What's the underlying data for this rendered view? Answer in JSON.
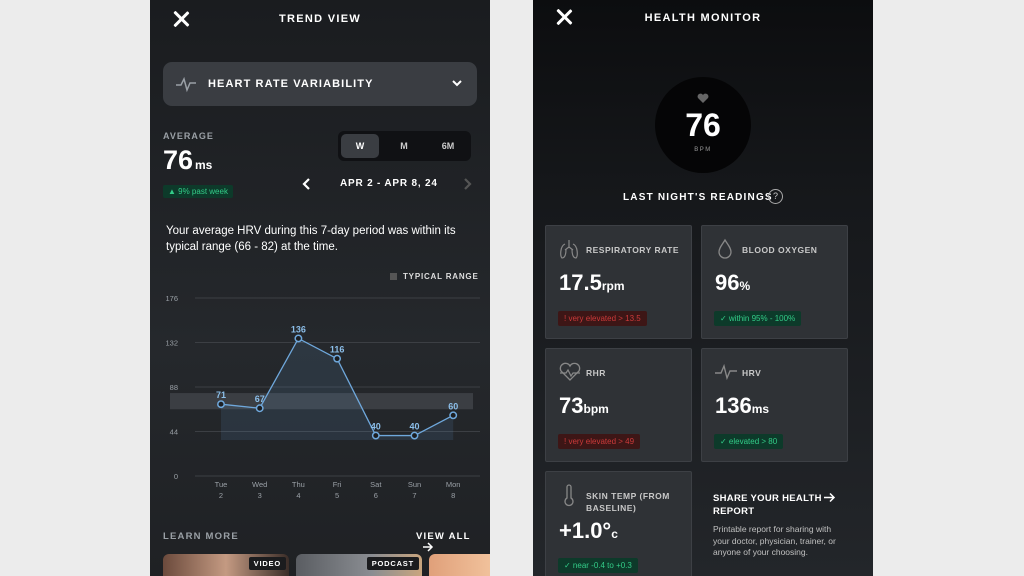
{
  "left": {
    "title": "TREND VIEW",
    "metric": "HEART RATE VARIABILITY",
    "average_label": "AVERAGE",
    "average_value": "76",
    "average_unit": "ms",
    "change_badge": "▲ 9% past week",
    "period_options": [
      "W",
      "M",
      "6M"
    ],
    "period_selected": "W",
    "date_range": "APR 2 - APR 8, 24",
    "summary": "Your average HRV during this 7-day period was within its typical range (66 - 82) at the time.",
    "legend_label": "TYPICAL RANGE",
    "learn_more": "LEARN MORE",
    "view_all": "VIEW ALL",
    "thumb_tags": [
      "VIDEO",
      "PODCAST"
    ]
  },
  "chart_data": {
    "type": "line",
    "categories": [
      "Tue",
      "Wed",
      "Thu",
      "Fri",
      "Sat",
      "Sun",
      "Mon"
    ],
    "dates": [
      "2",
      "3",
      "4",
      "5",
      "6",
      "7",
      "8"
    ],
    "values": [
      71,
      67,
      136,
      116,
      40,
      40,
      60
    ],
    "yticks": [
      0,
      44,
      88,
      132,
      176
    ],
    "ylim": [
      0,
      176
    ],
    "typical_range": [
      66,
      82
    ],
    "grid": true
  },
  "right": {
    "title": "HEALTH MONITOR",
    "bpm_value": "76",
    "bpm_unit": "BPM",
    "readings_title": "LAST NIGHT'S READINGS",
    "help": "?",
    "tiles": [
      {
        "label": "RESPIRATORY RATE",
        "value": "17.5",
        "unit": "rpm",
        "badge": "! very elevated > 13.5",
        "status": "red",
        "icon": "lungs-icon"
      },
      {
        "label": "BLOOD OXYGEN",
        "value": "96",
        "unit": "%",
        "badge": "✓ within 95% - 100%",
        "status": "green",
        "icon": "droplet-icon"
      },
      {
        "label": "RHR",
        "value": "73",
        "unit": "bpm",
        "badge": "! very elevated > 49",
        "status": "red",
        "icon": "heart-pulse-icon"
      },
      {
        "label": "HRV",
        "value": "136",
        "unit": "ms",
        "badge": "✓ elevated > 80",
        "status": "green",
        "icon": "pulse-icon"
      },
      {
        "label": "SKIN TEMP (FROM BASELINE)",
        "value": "+1.0°",
        "unit": "c",
        "badge": "✓ near -0.4 to +0.3",
        "status": "green",
        "icon": "thermometer-icon"
      }
    ],
    "share_title": "SHARE YOUR HEALTH REPORT",
    "share_desc": "Printable report for sharing with your doctor, physician, trainer, or anyone of your choosing."
  },
  "colors": {
    "accent_line": "#6fa8dc",
    "green": "#33cc88",
    "red": "#cc3a3a"
  }
}
